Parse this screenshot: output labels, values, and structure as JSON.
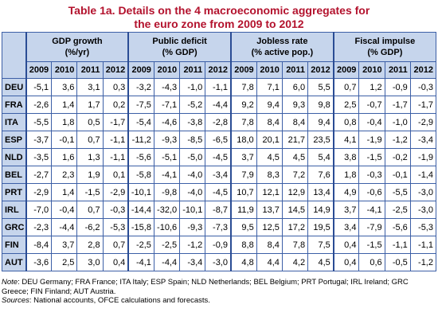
{
  "title": [
    "Table 1a. Details on the 4 macroeconomic aggregates for",
    "the euro zone from 2009 to 2012"
  ],
  "table": {
    "groups": [
      {
        "name": "GDP growth",
        "unit": "(%/yr)"
      },
      {
        "name": "Public deficit",
        "unit": "(% GDP)"
      },
      {
        "name": "Jobless rate",
        "unit": "(% active pop.)"
      },
      {
        "name": "Fiscal impulse",
        "unit": "(% GDP)"
      }
    ],
    "years": [
      2009,
      2010,
      2011,
      2012
    ],
    "rows": [
      {
        "country": "DEU",
        "values": [
          "-5,1",
          "3,6",
          "3,1",
          "0,3",
          "-3,2",
          "-4,3",
          "-1,0",
          "-1,1",
          "7,8",
          "7,1",
          "6,0",
          "5,5",
          "0,7",
          "1,2",
          "-0,9",
          "-0,3"
        ]
      },
      {
        "country": "FRA",
        "values": [
          "-2,6",
          "1,4",
          "1,7",
          "0,2",
          "-7,5",
          "-7,1",
          "-5,2",
          "-4,4",
          "9,2",
          "9,4",
          "9,3",
          "9,8",
          "2,5",
          "-0,7",
          "-1,7",
          "-1,7"
        ]
      },
      {
        "country": "ITA",
        "values": [
          "-5,5",
          "1,8",
          "0,5",
          "-1,7",
          "-5,4",
          "-4,6",
          "-3,8",
          "-2,8",
          "7,8",
          "8,4",
          "8,4",
          "9,4",
          "0,8",
          "-0,4",
          "-1,0",
          "-2,9"
        ]
      },
      {
        "country": "ESP",
        "values": [
          "-3,7",
          "-0,1",
          "0,7",
          "-1,1",
          "-11,2",
          "-9,3",
          "-8,5",
          "-6,5",
          "18,0",
          "20,1",
          "21,7",
          "23,5",
          "4,1",
          "-1,9",
          "-1,2",
          "-3,4"
        ]
      },
      {
        "country": "NLD",
        "values": [
          "-3,5",
          "1,6",
          "1,3",
          "-1,1",
          "-5,6",
          "-5,1",
          "-5,0",
          "-4,5",
          "3,7",
          "4,5",
          "4,5",
          "5,4",
          "3,8",
          "-1,5",
          "-0,2",
          "-1,9"
        ]
      },
      {
        "country": "BEL",
        "values": [
          "-2,7",
          "2,3",
          "1,9",
          "0,1",
          "-5,8",
          "-4,1",
          "-4,0",
          "-3,4",
          "7,9",
          "8,3",
          "7,2",
          "7,6",
          "1,8",
          "-0,3",
          "-0,1",
          "-1,4"
        ]
      },
      {
        "country": "PRT",
        "values": [
          "-2,9",
          "1,4",
          "-1,5",
          "-2,9",
          "-10,1",
          "-9,8",
          "-4,0",
          "-4,5",
          "10,7",
          "12,1",
          "12,9",
          "13,4",
          "4,9",
          "-0,6",
          "-5,5",
          "-3,0"
        ]
      },
      {
        "country": "IRL",
        "values": [
          "-7,0",
          "-0,4",
          "0,7",
          "-0,3",
          "-14,4",
          "-32,0",
          "-10,1",
          "-8,7",
          "11,9",
          "13,7",
          "14,5",
          "14,9",
          "3,7",
          "-4,1",
          "-2,5",
          "-3,0"
        ]
      },
      {
        "country": "GRC",
        "values": [
          "-2,3",
          "-4,4",
          "-6,2",
          "-5,3",
          "-15,8",
          "-10,6",
          "-9,3",
          "-7,3",
          "9,5",
          "12,5",
          "17,2",
          "19,5",
          "3,4",
          "-7,9",
          "-5,6",
          "-5,3"
        ]
      },
      {
        "country": "FIN",
        "values": [
          "-8,4",
          "3,7",
          "2,8",
          "0,7",
          "-2,5",
          "-2,5",
          "-1,2",
          "-0,9",
          "8,8",
          "8,4",
          "7,8",
          "7,5",
          "0,4",
          "-1,5",
          "-1,1",
          "-1,1"
        ]
      },
      {
        "country": "AUT",
        "values": [
          "-3,6",
          "2,5",
          "3,0",
          "0,4",
          "-4,1",
          "-4,4",
          "-3,4",
          "-3,0",
          "4,8",
          "4,4",
          "4,2",
          "4,5",
          "0,4",
          "0,6",
          "-0,5",
          "-1,2"
        ]
      }
    ]
  },
  "notes": {
    "note_label": "Note",
    "note_text": ": DEU Germany; FRA France; ITA Italy; ESP Spain; NLD Netherlands; BEL Belgium; PRT Portugal; IRL Ireland; GRC Greece; FIN Finland; AUT Austria.",
    "sources_label": "Sources",
    "sources_text": ": National accounts, OFCE calculations and forecasts."
  }
}
